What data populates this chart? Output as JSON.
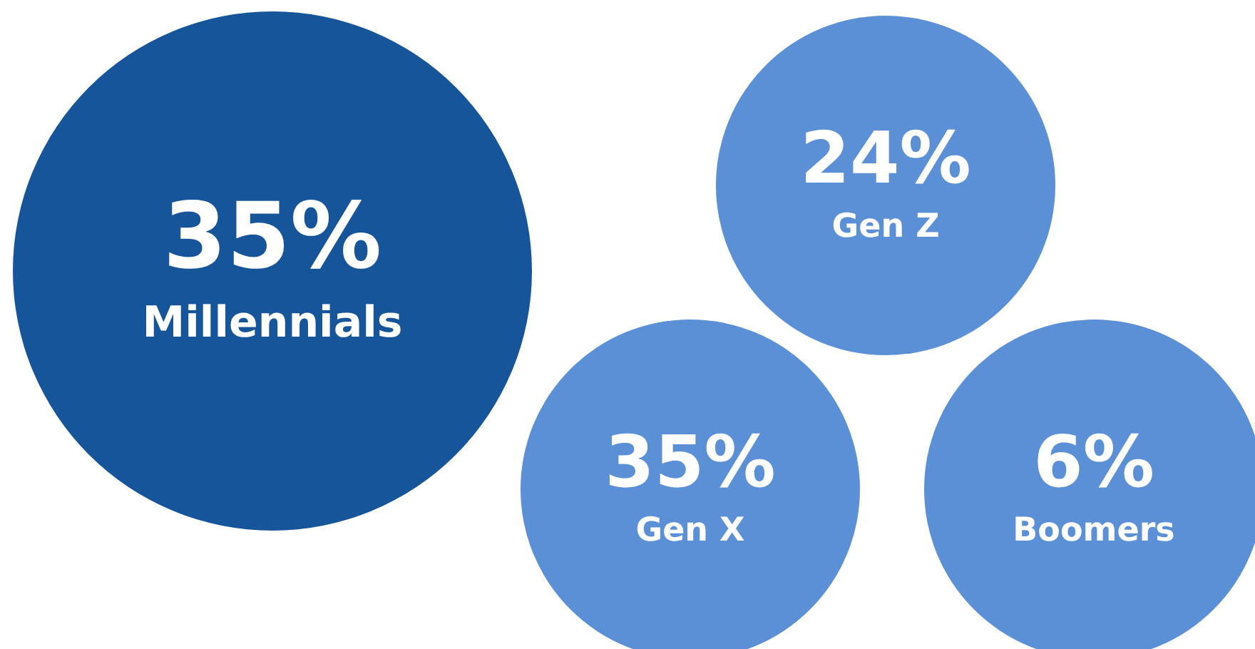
{
  "chart_data": {
    "type": "other",
    "categories": [
      "Millennials",
      "Gen Z",
      "Gen X",
      "Boomers"
    ],
    "values": [
      35,
      24,
      35,
      6
    ],
    "value_labels": [
      "35%",
      "24%",
      "35%",
      "6%"
    ],
    "colors": [
      "#17559b",
      "#5b8fd6",
      "#5b8fd6",
      "#5b8fd6"
    ]
  }
}
